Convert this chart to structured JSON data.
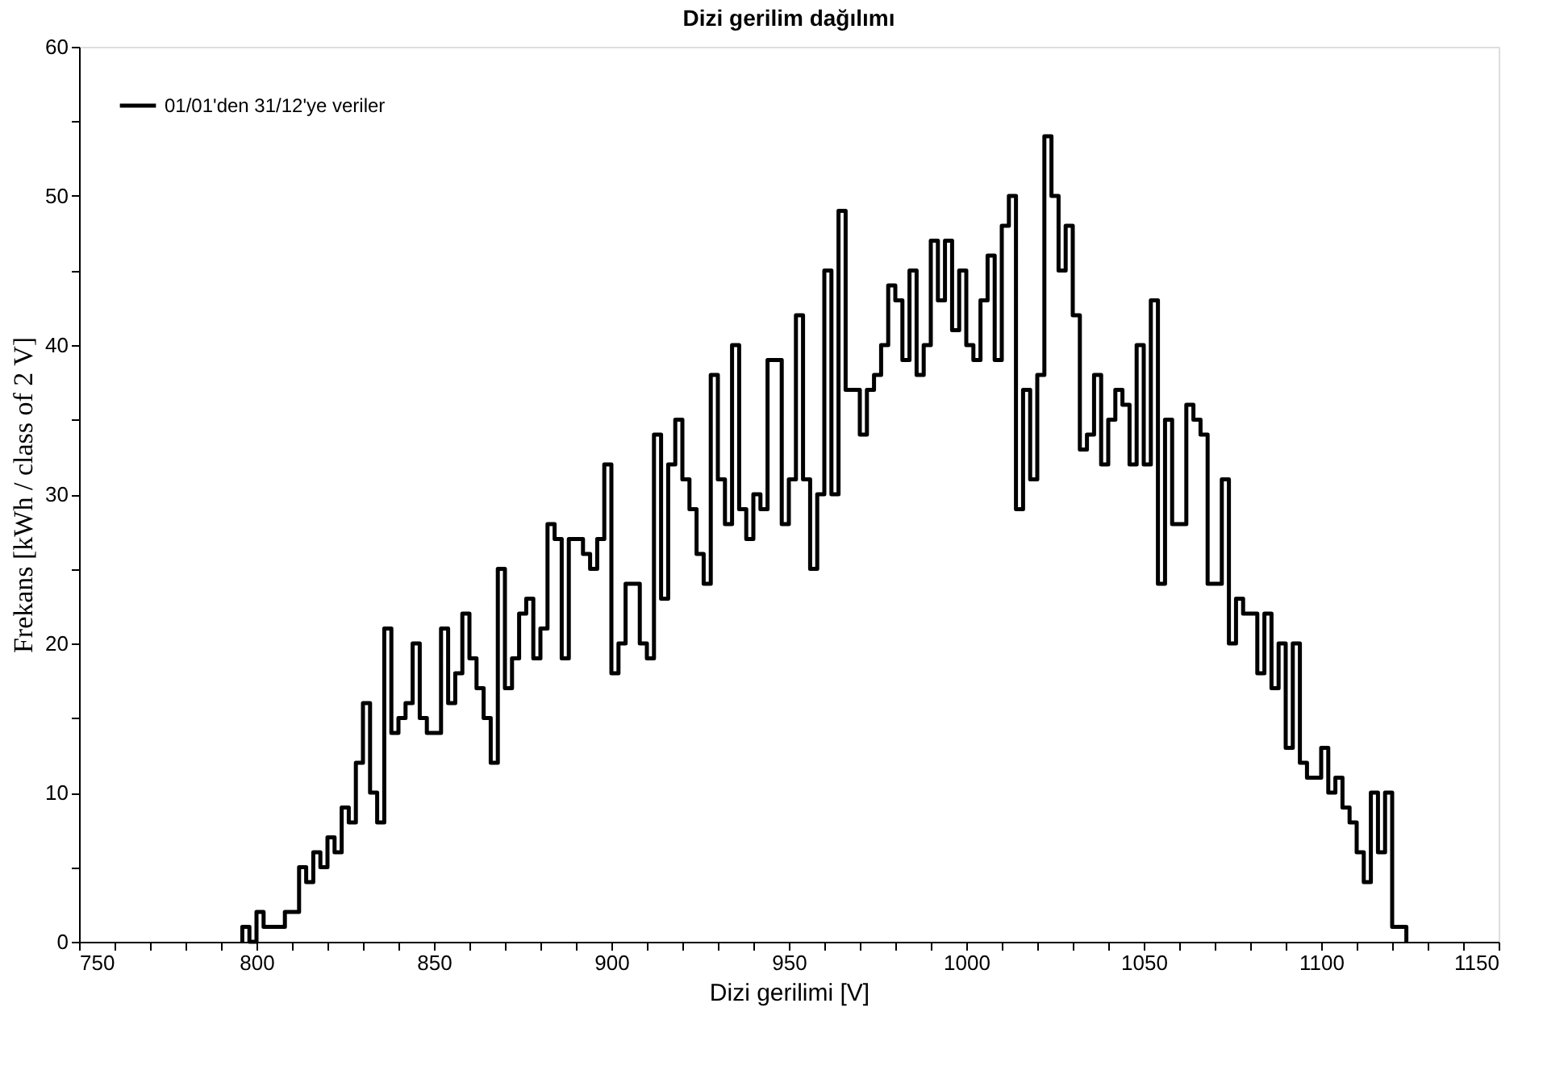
{
  "chart_data": {
    "type": "histogram",
    "title": "Dizi gerilim dağılımı",
    "xlabel": "Dizi gerilimi [V]",
    "ylabel": "Frekans [kWh / class of 2 V]",
    "bins": [
      796,
      798,
      800,
      802,
      804,
      806,
      808,
      810,
      812,
      814,
      816,
      818,
      820,
      822,
      824,
      826,
      828,
      830,
      832,
      834,
      836,
      838,
      840,
      842,
      844,
      846,
      848,
      850,
      852,
      854,
      856,
      858,
      860,
      862,
      864,
      866,
      868,
      870,
      872,
      874,
      876,
      878,
      880,
      882,
      884,
      886,
      888,
      890,
      892,
      894,
      896,
      898,
      900,
      902,
      904,
      906,
      908,
      910,
      912,
      914,
      916,
      918,
      920,
      922,
      924,
      926,
      928,
      930,
      932,
      934,
      936,
      938,
      940,
      942,
      944,
      946,
      948,
      950,
      952,
      954,
      956,
      958,
      960,
      962,
      964,
      966,
      968,
      970,
      972,
      974,
      976,
      978,
      980,
      982,
      984,
      986,
      988,
      990,
      992,
      994,
      996,
      998,
      1000,
      1002,
      1004,
      1006,
      1008,
      1010,
      1012,
      1014,
      1016,
      1018,
      1020,
      1022,
      1024,
      1026,
      1028,
      1030,
      1032,
      1034,
      1036,
      1038,
      1040,
      1042,
      1044,
      1046,
      1048,
      1050,
      1052,
      1054,
      1056,
      1058,
      1060,
      1062,
      1064,
      1066,
      1068,
      1070,
      1072,
      1074,
      1076,
      1078,
      1080,
      1082,
      1084,
      1086,
      1088,
      1090,
      1092,
      1094,
      1096,
      1098,
      1100,
      1102,
      1104,
      1106,
      1108,
      1110,
      1112,
      1114,
      1116,
      1118,
      1120,
      1122,
      1124
    ],
    "series": [
      {
        "name": "01/01'den 31/12'ye veriler",
        "color": "#000000",
        "values": [
          1,
          0,
          2,
          1,
          1,
          1,
          2,
          2,
          5,
          4,
          6,
          5,
          7,
          6,
          9,
          8,
          12,
          16,
          10,
          8,
          21,
          14,
          15,
          16,
          20,
          15,
          14,
          14,
          21,
          16,
          18,
          22,
          19,
          17,
          15,
          12,
          25,
          17,
          19,
          22,
          23,
          19,
          21,
          28,
          27,
          19,
          27,
          27,
          26,
          25,
          27,
          32,
          18,
          20,
          24,
          24,
          20,
          19,
          34,
          23,
          32,
          35,
          31,
          29,
          26,
          24,
          38,
          31,
          28,
          40,
          29,
          27,
          30,
          29,
          39,
          39,
          28,
          31,
          42,
          31,
          25,
          30,
          45,
          30,
          49,
          37,
          37,
          34,
          37,
          38,
          40,
          44,
          43,
          39,
          45,
          38,
          40,
          47,
          43,
          47,
          41,
          45,
          40,
          39,
          43,
          46,
          39,
          48,
          50,
          29,
          37,
          31,
          38,
          54,
          50,
          45,
          48,
          42,
          33,
          34,
          38,
          32,
          35,
          37,
          36,
          32,
          40,
          32,
          43,
          24,
          35,
          28,
          28,
          36,
          35,
          34,
          24,
          24,
          31,
          20,
          23,
          22,
          22,
          18,
          22,
          17,
          20,
          13,
          20,
          12,
          11,
          11,
          13,
          10,
          11,
          9,
          8,
          6,
          4,
          10,
          6,
          10,
          1,
          1
        ]
      }
    ],
    "xlim": [
      750,
      1150
    ],
    "ylim": [
      0,
      60
    ],
    "xticks": [
      750,
      {
        "value": 760,
        "label": null
      },
      {
        "value": 770,
        "label": null
      },
      {
        "value": 780,
        "label": null
      },
      {
        "value": 790,
        "label": null
      },
      800,
      {
        "value": 810,
        "label": null
      },
      {
        "value": 820,
        "label": null
      },
      {
        "value": 830,
        "label": null
      },
      {
        "value": 840,
        "label": null
      },
      850,
      {
        "value": 860,
        "label": null
      },
      {
        "value": 870,
        "label": null
      },
      {
        "value": 880,
        "label": null
      },
      {
        "value": 890,
        "label": null
      },
      900,
      {
        "value": 910,
        "label": null
      },
      {
        "value": 920,
        "label": null
      },
      {
        "value": 930,
        "label": null
      },
      {
        "value": 940,
        "label": null
      },
      950,
      {
        "value": 960,
        "label": null
      },
      {
        "value": 970,
        "label": null
      },
      {
        "value": 980,
        "label": null
      },
      {
        "value": 990,
        "label": null
      },
      1000,
      {
        "value": 1010,
        "label": null
      },
      {
        "value": 1020,
        "label": null
      },
      {
        "value": 1030,
        "label": null
      },
      {
        "value": 1040,
        "label": null
      },
      1050,
      {
        "value": 1060,
        "label": null
      },
      {
        "value": 1070,
        "label": null
      },
      {
        "value": 1080,
        "label": null
      },
      {
        "value": 1090,
        "label": null
      },
      1100,
      {
        "value": 1110,
        "label": null
      },
      {
        "value": 1120,
        "label": null
      },
      {
        "value": 1130,
        "label": null
      },
      {
        "value": 1140,
        "label": null
      },
      1150
    ],
    "yticks": [
      0,
      {
        "value": 5,
        "label": null
      },
      10,
      {
        "value": 15,
        "label": null
      },
      20,
      {
        "value": 25,
        "label": null
      },
      30,
      {
        "value": 35,
        "label": null
      },
      40,
      {
        "value": 45,
        "label": null
      },
      50,
      {
        "value": 55,
        "label": null
      },
      60
    ],
    "grid": false,
    "legend": "top left"
  }
}
